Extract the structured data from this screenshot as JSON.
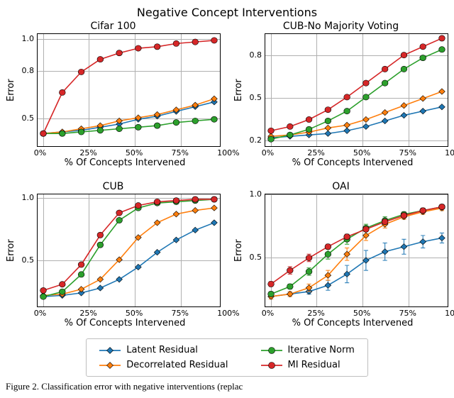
{
  "suptitle": "Negative Concept Interventions",
  "xlabel": "% Of Concepts Intervened",
  "ylabel": "Error",
  "xticks": [
    "0%",
    "25%",
    "50%",
    "75%",
    "100%"
  ],
  "caption": "Figure 2. Classification error with negative interventions (replac",
  "series_meta": [
    {
      "key": "latent",
      "label": "Latent Residual",
      "color": "#1f77b4",
      "marker": "diamond"
    },
    {
      "key": "decorr",
      "label": "Decorrelated Residual",
      "color": "#ff7f0e",
      "marker": "diamond"
    },
    {
      "key": "iter",
      "label": "Iterative Norm",
      "color": "#2ca02c",
      "marker": "circle"
    },
    {
      "key": "mi",
      "label": "MI Residual",
      "color": "#d62728",
      "marker": "circle"
    }
  ],
  "panels": [
    {
      "title": "Cifar 100",
      "ylim": [
        0.32,
        1.03
      ],
      "yticks": [
        "1.0",
        "0.8",
        "0.5"
      ],
      "ytick_vals": [
        1.0,
        0.8,
        0.5
      ],
      "x": [
        0,
        10,
        20,
        30,
        40,
        50,
        60,
        70,
        80,
        90
      ],
      "series": {
        "latent": [
          0.4,
          0.41,
          0.42,
          0.44,
          0.46,
          0.49,
          0.51,
          0.54,
          0.57,
          0.6
        ],
        "decorr": [
          0.4,
          0.41,
          0.43,
          0.45,
          0.48,
          0.5,
          0.52,
          0.55,
          0.58,
          0.62
        ],
        "iter": [
          0.4,
          0.4,
          0.41,
          0.42,
          0.43,
          0.44,
          0.45,
          0.47,
          0.48,
          0.49
        ],
        "mi": [
          0.4,
          0.66,
          0.79,
          0.87,
          0.91,
          0.94,
          0.95,
          0.97,
          0.98,
          0.99
        ]
      }
    },
    {
      "title": "CUB-No Majority Voting",
      "ylim": [
        0.15,
        0.95
      ],
      "yticks": [
        "0.8",
        "0.5",
        "0.2"
      ],
      "ytick_vals": [
        0.8,
        0.5,
        0.2
      ],
      "x": [
        0,
        10,
        20,
        30,
        40,
        50,
        60,
        70,
        80,
        90
      ],
      "series": {
        "latent": [
          0.21,
          0.22,
          0.23,
          0.24,
          0.26,
          0.29,
          0.33,
          0.37,
          0.4,
          0.43
        ],
        "decorr": [
          0.22,
          0.23,
          0.25,
          0.28,
          0.3,
          0.34,
          0.39,
          0.44,
          0.49,
          0.54
        ],
        "iter": [
          0.2,
          0.23,
          0.27,
          0.33,
          0.4,
          0.5,
          0.6,
          0.7,
          0.78,
          0.84
        ],
        "mi": [
          0.26,
          0.29,
          0.34,
          0.41,
          0.5,
          0.6,
          0.7,
          0.8,
          0.86,
          0.92
        ]
      }
    },
    {
      "title": "CUB",
      "ylim": [
        0.12,
        1.03
      ],
      "yticks": [
        "1.0",
        "0.5"
      ],
      "ytick_vals": [
        1.0,
        0.5
      ],
      "x": [
        0,
        10,
        20,
        30,
        40,
        50,
        60,
        70,
        80,
        90
      ],
      "series": {
        "latent": [
          0.2,
          0.21,
          0.23,
          0.27,
          0.34,
          0.44,
          0.56,
          0.66,
          0.74,
          0.8
        ],
        "decorr": [
          0.21,
          0.22,
          0.26,
          0.34,
          0.5,
          0.68,
          0.8,
          0.87,
          0.9,
          0.92
        ],
        "iter": [
          0.2,
          0.24,
          0.38,
          0.62,
          0.82,
          0.92,
          0.96,
          0.97,
          0.98,
          0.99
        ],
        "mi": [
          0.25,
          0.3,
          0.46,
          0.7,
          0.88,
          0.94,
          0.97,
          0.98,
          0.99,
          0.99
        ]
      }
    },
    {
      "title": "OAI",
      "ylim": [
        0.1,
        1.0
      ],
      "yticks": [
        "1.0",
        "0.5"
      ],
      "ytick_vals": [
        1.0,
        0.5
      ],
      "x": [
        0,
        10,
        20,
        30,
        40,
        50,
        60,
        70,
        80,
        90
      ],
      "series": {
        "latent": [
          0.18,
          0.2,
          0.22,
          0.27,
          0.36,
          0.47,
          0.54,
          0.58,
          0.62,
          0.65
        ],
        "decorr": [
          0.18,
          0.2,
          0.25,
          0.35,
          0.52,
          0.67,
          0.76,
          0.82,
          0.86,
          0.89
        ],
        "iter": [
          0.2,
          0.26,
          0.38,
          0.52,
          0.64,
          0.73,
          0.79,
          0.84,
          0.87,
          0.9
        ],
        "mi": [
          0.28,
          0.39,
          0.49,
          0.58,
          0.66,
          0.72,
          0.78,
          0.83,
          0.87,
          0.9
        ]
      },
      "errorbars_y": {
        "latent": [
          0.02,
          0.02,
          0.02,
          0.04,
          0.07,
          0.08,
          0.07,
          0.06,
          0.05,
          0.04
        ],
        "decorr": [
          0.02,
          0.02,
          0.03,
          0.04,
          0.05,
          0.04,
          0.03,
          0.02,
          0.02,
          0.02
        ],
        "iter": [
          0.02,
          0.02,
          0.03,
          0.04,
          0.04,
          0.03,
          0.03,
          0.02,
          0.02,
          0.02
        ],
        "mi": [
          0.02,
          0.03,
          0.03,
          0.02,
          0.02,
          0.02,
          0.02,
          0.02,
          0.02,
          0.02
        ]
      }
    }
  ],
  "style": {
    "line_width": 1.6,
    "marker_size": 4.2,
    "marker_edge": "#000000",
    "grid_color": "#b0b0b0",
    "background": "#ffffff",
    "xlim": [
      -3,
      93
    ]
  }
}
